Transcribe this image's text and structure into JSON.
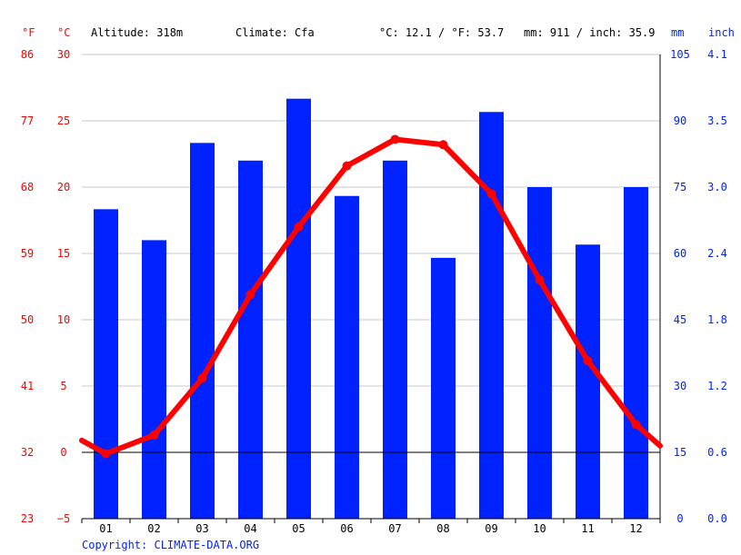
{
  "header": {
    "unit_f": "°F",
    "unit_c": "°C",
    "altitude": "Altitude: 318m",
    "climate": "Climate: Cfa",
    "avg_temp": "°C: 12.1 / °F: 53.7",
    "precip_total": "mm: 911 / inch: 35.9",
    "unit_mm": "mm",
    "unit_inch": "inch"
  },
  "footer": {
    "copyright": "Copyright: CLIMATE-DATA.ORG"
  },
  "colors": {
    "temp": "#ff0000",
    "precip": "#0022ff",
    "grid": "#c8c8c8",
    "text": "#000000"
  },
  "chart_data": {
    "type": "bar+line",
    "categories": [
      "01",
      "02",
      "03",
      "04",
      "05",
      "06",
      "07",
      "08",
      "09",
      "10",
      "11",
      "12"
    ],
    "precipitation_mm": [
      70,
      63,
      85,
      81,
      95,
      73,
      81,
      59,
      92,
      75,
      62,
      75
    ],
    "temperature_c": [
      -0.1,
      1.3,
      5.6,
      11.9,
      17.0,
      21.6,
      23.6,
      23.2,
      19.5,
      13.0,
      6.9,
      2.1
    ],
    "temperature_c_start_edge": 0.9,
    "temperature_c_end_edge": 0.5,
    "axes": {
      "left_f": {
        "ticks": [
          "86",
          "77",
          "68",
          "59",
          "50",
          "41",
          "32",
          "23"
        ]
      },
      "left_c": {
        "ticks": [
          "30",
          "25",
          "20",
          "15",
          "10",
          "5",
          "0",
          "−5"
        ],
        "ylim": [
          -5,
          30
        ]
      },
      "right_mm": {
        "ticks": [
          "105",
          "90",
          "75",
          "60",
          "45",
          "30",
          "15",
          "0"
        ],
        "ylim": [
          0,
          105
        ]
      },
      "right_inch": {
        "ticks": [
          "4.1",
          "3.5",
          "3.0",
          "2.4",
          "1.8",
          "1.2",
          "0.6",
          "0.0"
        ]
      }
    },
    "grid": true
  }
}
